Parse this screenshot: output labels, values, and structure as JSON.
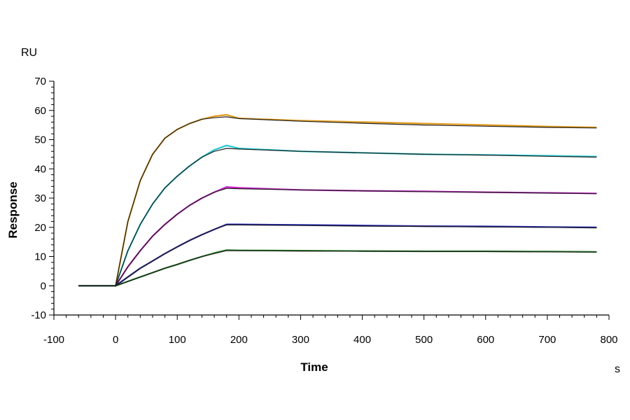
{
  "chart_data": {
    "type": "line",
    "title": "",
    "xlabel": "Time",
    "ylabel": "Response",
    "x_unit": "s",
    "y_unit": "RU",
    "xlim": [
      -100,
      800
    ],
    "ylim": [
      -10,
      70
    ],
    "x_ticks": [
      -100,
      0,
      100,
      200,
      300,
      400,
      500,
      600,
      700,
      800
    ],
    "y_ticks": [
      -10,
      0,
      10,
      20,
      30,
      40,
      50,
      60,
      70
    ],
    "legend": "none",
    "grid": false,
    "series": [
      {
        "color": "#e09a1c",
        "data": [
          [
            -60,
            0
          ],
          [
            0,
            0
          ],
          [
            20,
            22
          ],
          [
            40,
            36
          ],
          [
            60,
            45
          ],
          [
            80,
            50.5
          ],
          [
            100,
            53.5
          ],
          [
            120,
            55.5
          ],
          [
            140,
            57
          ],
          [
            160,
            58
          ],
          [
            180,
            58.5
          ],
          [
            200,
            57.3
          ],
          [
            300,
            56.5
          ],
          [
            400,
            56
          ],
          [
            500,
            55.5
          ],
          [
            600,
            55
          ],
          [
            700,
            54.5
          ],
          [
            780,
            54.2
          ]
        ],
        "fit": [
          [
            -60,
            0
          ],
          [
            0,
            0
          ],
          [
            20,
            22
          ],
          [
            40,
            36
          ],
          [
            60,
            45
          ],
          [
            80,
            50.5
          ],
          [
            100,
            53.5
          ],
          [
            120,
            55.5
          ],
          [
            140,
            57
          ],
          [
            160,
            57.5
          ],
          [
            180,
            57.8
          ],
          [
            200,
            57.2
          ],
          [
            300,
            56.3
          ],
          [
            400,
            55.6
          ],
          [
            500,
            55
          ],
          [
            600,
            54.6
          ],
          [
            700,
            54.2
          ],
          [
            780,
            54
          ]
        ]
      },
      {
        "color": "#22c7d0",
        "data": [
          [
            -60,
            0
          ],
          [
            0,
            0
          ],
          [
            20,
            12
          ],
          [
            40,
            21
          ],
          [
            60,
            28
          ],
          [
            80,
            33.5
          ],
          [
            100,
            37.5
          ],
          [
            120,
            41
          ],
          [
            140,
            44
          ],
          [
            160,
            46.5
          ],
          [
            180,
            48
          ],
          [
            200,
            47
          ],
          [
            300,
            46
          ],
          [
            400,
            45.5
          ],
          [
            500,
            45
          ],
          [
            600,
            44.8
          ],
          [
            700,
            44.5
          ],
          [
            780,
            44.2
          ]
        ],
        "fit": [
          [
            -60,
            0
          ],
          [
            0,
            0
          ],
          [
            20,
            12
          ],
          [
            40,
            21
          ],
          [
            60,
            28
          ],
          [
            80,
            33.5
          ],
          [
            100,
            37.5
          ],
          [
            120,
            41
          ],
          [
            140,
            44
          ],
          [
            160,
            46
          ],
          [
            180,
            47
          ],
          [
            200,
            46.8
          ],
          [
            300,
            46
          ],
          [
            400,
            45.5
          ],
          [
            500,
            45
          ],
          [
            600,
            44.7
          ],
          [
            700,
            44.3
          ],
          [
            780,
            44
          ]
        ]
      },
      {
        "color": "#c818c8",
        "data": [
          [
            -60,
            0
          ],
          [
            0,
            0
          ],
          [
            20,
            6.5
          ],
          [
            40,
            12
          ],
          [
            60,
            17
          ],
          [
            80,
            21
          ],
          [
            100,
            24.5
          ],
          [
            120,
            27.5
          ],
          [
            140,
            30
          ],
          [
            160,
            32
          ],
          [
            180,
            33.8
          ],
          [
            200,
            33.5
          ],
          [
            300,
            32.8
          ],
          [
            400,
            32.5
          ],
          [
            500,
            32.3
          ],
          [
            600,
            32
          ],
          [
            700,
            31.8
          ],
          [
            780,
            31.6
          ]
        ],
        "fit": [
          [
            -60,
            0
          ],
          [
            0,
            0
          ],
          [
            20,
            6.5
          ],
          [
            40,
            12
          ],
          [
            60,
            17
          ],
          [
            80,
            21
          ],
          [
            100,
            24.5
          ],
          [
            120,
            27.5
          ],
          [
            140,
            30
          ],
          [
            160,
            32
          ],
          [
            180,
            33.3
          ],
          [
            200,
            33.2
          ],
          [
            300,
            32.8
          ],
          [
            400,
            32.5
          ],
          [
            500,
            32.2
          ],
          [
            600,
            32
          ],
          [
            700,
            31.7
          ],
          [
            780,
            31.5
          ]
        ]
      },
      {
        "color": "#1a1aa8",
        "data": [
          [
            -60,
            0
          ],
          [
            0,
            0
          ],
          [
            20,
            3
          ],
          [
            40,
            6
          ],
          [
            60,
            8.5
          ],
          [
            80,
            11
          ],
          [
            100,
            13.3
          ],
          [
            120,
            15.5
          ],
          [
            140,
            17.5
          ],
          [
            160,
            19.3
          ],
          [
            180,
            21
          ],
          [
            200,
            21
          ],
          [
            300,
            20.8
          ],
          [
            400,
            20.6
          ],
          [
            500,
            20.4
          ],
          [
            600,
            20.3
          ],
          [
            700,
            20.1
          ],
          [
            780,
            20
          ]
        ],
        "fit": [
          [
            -60,
            0
          ],
          [
            0,
            0
          ],
          [
            20,
            3
          ],
          [
            40,
            6
          ],
          [
            60,
            8.5
          ],
          [
            80,
            11
          ],
          [
            100,
            13.3
          ],
          [
            120,
            15.5
          ],
          [
            140,
            17.5
          ],
          [
            160,
            19.3
          ],
          [
            180,
            20.8
          ],
          [
            200,
            20.8
          ],
          [
            300,
            20.6
          ],
          [
            400,
            20.4
          ],
          [
            500,
            20.3
          ],
          [
            600,
            20.1
          ],
          [
            700,
            20
          ],
          [
            780,
            19.8
          ]
        ]
      },
      {
        "color": "#1a7a1a",
        "data": [
          [
            -60,
            0
          ],
          [
            0,
            0
          ],
          [
            20,
            1.5
          ],
          [
            40,
            3
          ],
          [
            60,
            4.5
          ],
          [
            80,
            6
          ],
          [
            100,
            7.3
          ],
          [
            120,
            8.7
          ],
          [
            140,
            10
          ],
          [
            160,
            11.2
          ],
          [
            180,
            12.2
          ],
          [
            200,
            12.1
          ],
          [
            300,
            12
          ],
          [
            400,
            11.9
          ],
          [
            500,
            11.8
          ],
          [
            600,
            11.8
          ],
          [
            700,
            11.7
          ],
          [
            780,
            11.6
          ]
        ],
        "fit": [
          [
            -60,
            0
          ],
          [
            0,
            0
          ],
          [
            20,
            1.5
          ],
          [
            40,
            3
          ],
          [
            60,
            4.5
          ],
          [
            80,
            6
          ],
          [
            100,
            7.3
          ],
          [
            120,
            8.7
          ],
          [
            140,
            10
          ],
          [
            160,
            11
          ],
          [
            180,
            12
          ],
          [
            200,
            12
          ],
          [
            300,
            11.9
          ],
          [
            400,
            11.8
          ],
          [
            500,
            11.7
          ],
          [
            600,
            11.7
          ],
          [
            700,
            11.6
          ],
          [
            780,
            11.5
          ]
        ]
      }
    ]
  }
}
